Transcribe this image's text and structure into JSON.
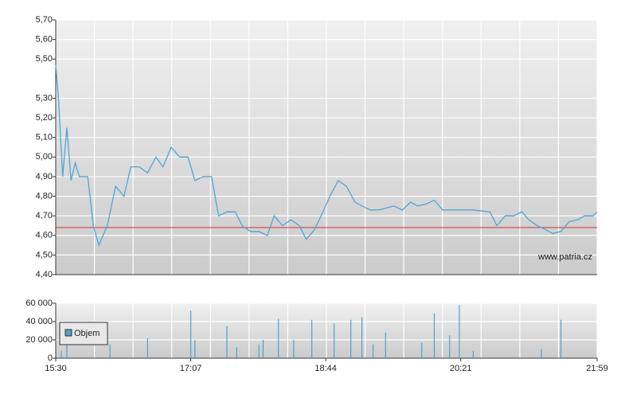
{
  "chart_data": [
    {
      "type": "line",
      "x": [
        "15:30",
        "15:32",
        "15:35",
        "15:38",
        "15:41",
        "15:44",
        "15:47",
        "15:53",
        "15:57",
        "16:01",
        "16:07",
        "16:13",
        "16:19",
        "16:24",
        "16:30",
        "16:36",
        "16:42",
        "16:47",
        "16:53",
        "16:59",
        "17:05",
        "17:10",
        "17:16",
        "17:22",
        "17:27",
        "17:33",
        "17:39",
        "17:44",
        "17:50",
        "17:56",
        "18:02",
        "18:07",
        "18:13",
        "18:19",
        "18:25",
        "18:30",
        "18:36",
        "18:42",
        "18:47",
        "18:53",
        "18:59",
        "19:05",
        "19:10",
        "19:16",
        "19:22",
        "19:28",
        "19:33",
        "19:39",
        "19:45",
        "19:50",
        "19:56",
        "20:02",
        "20:08",
        "20:19",
        "20:30",
        "20:42",
        "20:47",
        "20:53",
        "20:59",
        "21:05",
        "21:10",
        "21:16",
        "21:22",
        "21:27",
        "21:33",
        "21:39",
        "21:45",
        "21:50",
        "21:56",
        "21:59"
      ],
      "values": [
        5.47,
        5.3,
        4.9,
        5.15,
        4.88,
        4.97,
        4.9,
        4.9,
        4.65,
        4.55,
        4.65,
        4.85,
        4.8,
        4.95,
        4.95,
        4.92,
        5.0,
        4.95,
        5.05,
        5.0,
        5.0,
        4.88,
        4.9,
        4.9,
        4.7,
        4.72,
        4.72,
        4.65,
        4.62,
        4.62,
        4.6,
        4.7,
        4.65,
        4.68,
        4.65,
        4.58,
        4.63,
        4.72,
        4.8,
        4.88,
        4.85,
        4.77,
        4.75,
        4.73,
        4.73,
        4.74,
        4.75,
        4.73,
        4.77,
        4.75,
        4.76,
        4.78,
        4.73,
        4.73,
        4.73,
        4.72,
        4.65,
        4.7,
        4.7,
        4.72,
        4.68,
        4.65,
        4.63,
        4.61,
        4.62,
        4.67,
        4.68,
        4.7,
        4.7,
        4.72
      ],
      "color": "#4ea6d6",
      "xlim": [
        "15:30",
        "21:59"
      ],
      "ylim": [
        4.4,
        5.7
      ],
      "yticks": [
        {
          "value": 4.4,
          "label": "4,40"
        },
        {
          "value": 4.5,
          "label": "4,50"
        },
        {
          "value": 4.6,
          "label": "4,60"
        },
        {
          "value": 4.7,
          "label": "4,70"
        },
        {
          "value": 4.8,
          "label": "4,80"
        },
        {
          "value": 4.9,
          "label": "4,90"
        },
        {
          "value": 5.0,
          "label": "5,00"
        },
        {
          "value": 5.1,
          "label": "5,10"
        },
        {
          "value": 5.2,
          "label": "5,20"
        },
        {
          "value": 5.3,
          "label": "5,30"
        },
        {
          "value": 5.5,
          "label": "5,50"
        },
        {
          "value": 5.6,
          "label": "5,60"
        },
        {
          "value": 5.7,
          "label": "5,70"
        }
      ],
      "reference_line": {
        "value": 4.64,
        "color": "#cc3333"
      },
      "watermark": "www.patria.cz",
      "grid": true
    },
    {
      "type": "bar",
      "x": [
        "15:34",
        "15:38",
        "16:09",
        "16:36",
        "17:07",
        "17:10",
        "17:33",
        "17:40",
        "17:56",
        "17:59",
        "18:10",
        "18:21",
        "18:34",
        "18:50",
        "19:02",
        "19:10",
        "19:18",
        "19:27",
        "19:53",
        "20:02",
        "20:13",
        "20:20",
        "20:30",
        "21:19",
        "21:33"
      ],
      "series": [
        {
          "name": "Objem",
          "color": "#4aa3cc",
          "values": [
            8000,
            20000,
            15000,
            22000,
            52000,
            20000,
            35000,
            12000,
            15000,
            20000,
            43000,
            20000,
            42000,
            38000,
            42000,
            45000,
            15000,
            28000,
            17000,
            49000,
            25000,
            58000,
            8000,
            10000,
            42000
          ]
        }
      ],
      "xlim": [
        "15:30",
        "21:59"
      ],
      "xticks": [
        "15:30",
        "17:07",
        "18:44",
        "20:21",
        "21:59"
      ],
      "ylim": [
        0,
        60000
      ],
      "yticks": [
        0,
        {
          "value": 20000,
          "label": "20 000"
        },
        {
          "value": 40000,
          "label": "40 000"
        },
        {
          "value": 60000,
          "label": "60 000"
        }
      ],
      "grid": true
    }
  ]
}
